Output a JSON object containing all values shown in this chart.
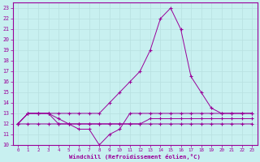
{
  "xlabel": "Windchill (Refroidissement éolien,°C)",
  "bg_color": "#c8f0f0",
  "line_color": "#990099",
  "grid_color": "#b8e0e0",
  "xlim": [
    -0.5,
    23.5
  ],
  "ylim": [
    10,
    23.5
  ],
  "xticks": [
    0,
    1,
    2,
    3,
    4,
    5,
    6,
    7,
    8,
    9,
    10,
    11,
    12,
    13,
    14,
    15,
    16,
    17,
    18,
    19,
    20,
    21,
    22,
    23
  ],
  "yticks": [
    10,
    11,
    12,
    13,
    14,
    15,
    16,
    17,
    18,
    19,
    20,
    21,
    22,
    23
  ],
  "series": [
    [
      12,
      13,
      13,
      13,
      13,
      13,
      13,
      13,
      13,
      14,
      15,
      16,
      17,
      19,
      22,
      23,
      21,
      16.5,
      15,
      13.5,
      13,
      13,
      13,
      13
    ],
    [
      12,
      13,
      13,
      13,
      12.5,
      12,
      11.5,
      11.5,
      10,
      11,
      11.5,
      13,
      13,
      13,
      13,
      13,
      13,
      13,
      13,
      13,
      13,
      13,
      13,
      13
    ],
    [
      12,
      13,
      13,
      13,
      12,
      12,
      12,
      12,
      12,
      12,
      12,
      12,
      12,
      12,
      12,
      12,
      12,
      12,
      12,
      12,
      12,
      12,
      12,
      12
    ],
    [
      12,
      12,
      12,
      12,
      12,
      12,
      12,
      12,
      12,
      12,
      12,
      12,
      12,
      12.5,
      12.5,
      12.5,
      12.5,
      12.5,
      12.5,
      12.5,
      12.5,
      12.5,
      12.5,
      12.5
    ]
  ]
}
